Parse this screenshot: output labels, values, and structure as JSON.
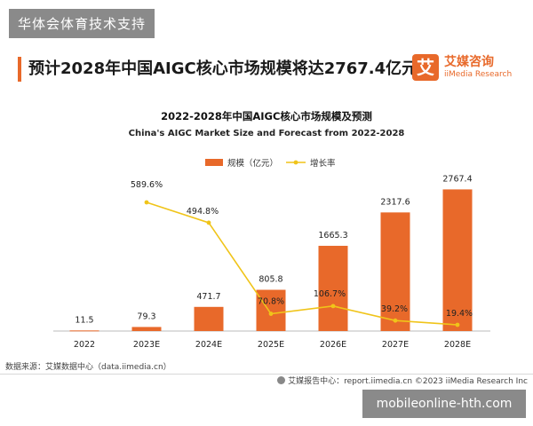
{
  "watermark_top": "华体会体育技术支持",
  "page": {
    "title": "预计2028年中国AIGC核心市场规模将达2767.4亿元"
  },
  "brand": {
    "logo_char": "艾",
    "name_cn": "艾媒咨询",
    "name_en": "iiMedia Research",
    "accent_color": "#e8692a"
  },
  "chart_data": {
    "type": "bar",
    "title": "2022-2028年中国AIGC核心市场规模及预测",
    "subtitle": "China's AIGC Market Size and Forecast from 2022-2028",
    "categories": [
      "2022",
      "2023E",
      "2024E",
      "2025E",
      "2026E",
      "2027E",
      "2028E"
    ],
    "series": [
      {
        "name": "规模（亿元）",
        "type": "bar",
        "color": "#e8692a",
        "values": [
          11.5,
          79.3,
          471.7,
          805.8,
          1665.3,
          2317.6,
          2767.4
        ],
        "labels": [
          "11.5",
          "79.3",
          "471.7",
          "805.8",
          "1665.3",
          "2317.6",
          "2767.4"
        ]
      },
      {
        "name": "增长率",
        "type": "line",
        "color": "#f0c419",
        "values": [
          null,
          589.6,
          494.8,
          70.8,
          106.7,
          39.2,
          19.4
        ],
        "labels": [
          "",
          "589.6%",
          "494.8%",
          "70.8%",
          "106.7%",
          "39.2%",
          "19.4%"
        ]
      }
    ],
    "legend_position": "top-right",
    "grid": false
  },
  "footer": {
    "source": "数据来源：艾媒数据中心（data.iimedia.cn）",
    "report": "艾媒报告中心：report.iimedia.cn   ©2023  iiMedia Research  Inc"
  },
  "watermark_bottom": "mobileonline-hth.com"
}
